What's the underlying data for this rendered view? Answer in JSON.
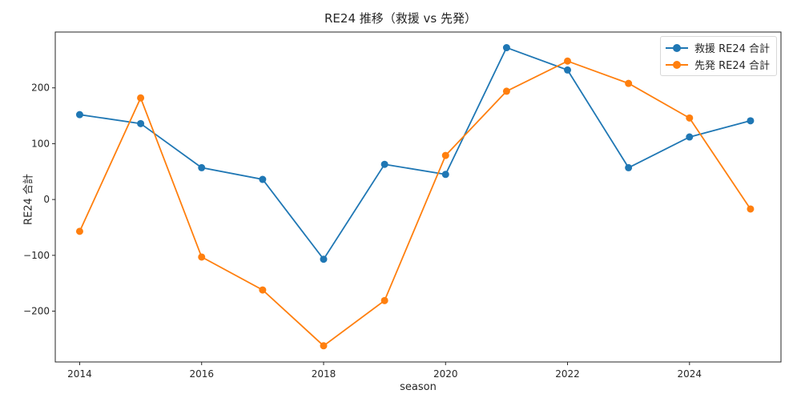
{
  "chart_data": {
    "type": "line",
    "title": "RE24 推移（救援 vs 先発）",
    "xlabel": "season",
    "ylabel": "RE24 合計",
    "x": [
      2014,
      2015,
      2016,
      2017,
      2018,
      2019,
      2020,
      2021,
      2022,
      2023,
      2024,
      2025
    ],
    "series": [
      {
        "name": "救援 RE24 合計",
        "color": "#1f77b4",
        "values": [
          152,
          136,
          57,
          36,
          -107,
          63,
          45,
          272,
          232,
          57,
          112,
          141
        ]
      },
      {
        "name": "先発 RE24 合計",
        "color": "#ff7f0e",
        "values": [
          -57,
          182,
          -103,
          -162,
          -262,
          -181,
          79,
          194,
          248,
          208,
          146,
          -17
        ]
      }
    ],
    "xticks": [
      2014,
      2016,
      2018,
      2020,
      2022,
      2024
    ],
    "yticks": [
      -200,
      -100,
      0,
      100,
      200
    ],
    "xlim": [
      2013.6,
      2025.5
    ],
    "ylim": [
      -291,
      300
    ],
    "grid": false,
    "legend_position": "upper right",
    "markers": "circle"
  }
}
